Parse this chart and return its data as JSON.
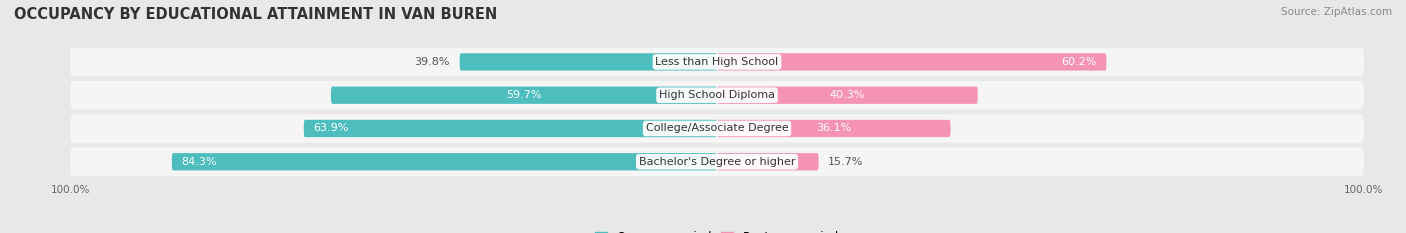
{
  "title": "OCCUPANCY BY EDUCATIONAL ATTAINMENT IN VAN BUREN",
  "source": "Source: ZipAtlas.com",
  "categories": [
    "Less than High School",
    "High School Diploma",
    "College/Associate Degree",
    "Bachelor's Degree or higher"
  ],
  "owner_pct": [
    39.8,
    59.7,
    63.9,
    84.3
  ],
  "renter_pct": [
    60.2,
    40.3,
    36.1,
    15.7
  ],
  "owner_color": "#4dbdbd",
  "renter_color": "#f493b2",
  "bg_color": "#e8e8e8",
  "row_bg_color": "#f5f5f5",
  "title_fontsize": 10.5,
  "source_fontsize": 7.5,
  "label_fontsize": 8,
  "pct_fontsize": 8,
  "legend_fontsize": 8.5,
  "axis_label_fontsize": 7.5
}
